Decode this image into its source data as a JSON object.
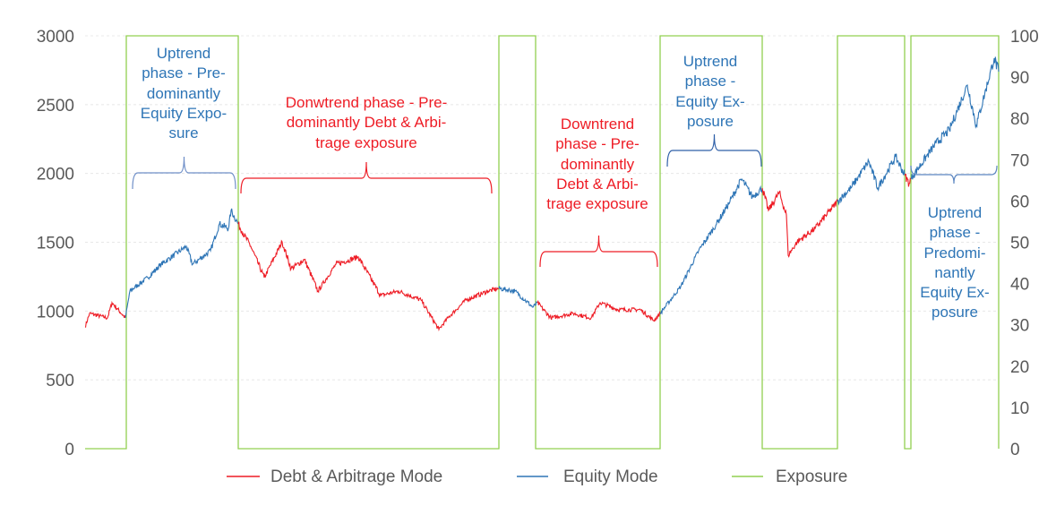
{
  "chart_data": {
    "type": "line",
    "title": "",
    "xlabel": "",
    "ylabel": "",
    "y_left_lim": [
      0,
      3000
    ],
    "y_left_ticks": [
      "0",
      "500",
      "1000",
      "1500",
      "2000",
      "2500",
      "3000"
    ],
    "y_right_lim": [
      0,
      100
    ],
    "y_right_ticks": [
      "0",
      "10",
      "20",
      "30",
      "40",
      "50",
      "60",
      "70",
      "80",
      "90",
      "100"
    ],
    "x_lim": [
      0,
      1020
    ],
    "grid": true,
    "legend_position": "bottom",
    "colors": {
      "debt": "#ee1c25",
      "equity": "#2e75b6",
      "exposure": "#92d050",
      "grid": "#e8e8e8"
    },
    "legend": [
      {
        "key": "debt",
        "label": "Debt & Arbitrage Mode"
      },
      {
        "key": "equity",
        "label": "Equity Mode"
      },
      {
        "key": "exposure",
        "label": "Exposure"
      }
    ],
    "price_segments": [
      {
        "mode": "debt",
        "points": [
          [
            0,
            885
          ],
          [
            5,
            983
          ],
          [
            25,
            950
          ],
          [
            30,
            1061
          ],
          [
            45,
            950
          ]
        ]
      },
      {
        "mode": "equity",
        "points": [
          [
            45,
            950
          ],
          [
            50,
            1145
          ],
          [
            70,
            1243
          ],
          [
            85,
            1340
          ],
          [
            113,
            1470
          ],
          [
            120,
            1340
          ],
          [
            140,
            1438
          ],
          [
            150,
            1633
          ],
          [
            160,
            1600
          ],
          [
            163,
            1731
          ],
          [
            171,
            1633
          ]
        ]
      },
      {
        "mode": "debt",
        "points": [
          [
            171,
            1633
          ],
          [
            175,
            1581
          ],
          [
            185,
            1470
          ],
          [
            200,
            1243
          ],
          [
            220,
            1503
          ],
          [
            230,
            1308
          ],
          [
            245,
            1373
          ],
          [
            260,
            1145
          ],
          [
            280,
            1340
          ],
          [
            305,
            1393
          ],
          [
            330,
            1113
          ],
          [
            350,
            1145
          ],
          [
            375,
            1080
          ],
          [
            395,
            866
          ],
          [
            405,
            950
          ],
          [
            425,
            1080
          ],
          [
            450,
            1145
          ],
          [
            462,
            1165
          ]
        ]
      },
      {
        "mode": "equity",
        "points": [
          [
            462,
            1165
          ],
          [
            480,
            1145
          ],
          [
            500,
            1028
          ],
          [
            505,
            1061
          ]
        ]
      },
      {
        "mode": "debt",
        "points": [
          [
            505,
            1061
          ],
          [
            520,
            950
          ],
          [
            545,
            983
          ],
          [
            565,
            950
          ],
          [
            575,
            1061
          ],
          [
            595,
            1010
          ],
          [
            620,
            1010
          ],
          [
            635,
            931
          ],
          [
            642,
            983
          ]
        ]
      },
      {
        "mode": "equity",
        "points": [
          [
            642,
            983
          ],
          [
            665,
            1178
          ],
          [
            685,
            1438
          ],
          [
            705,
            1633
          ],
          [
            720,
            1796
          ],
          [
            733,
            1959
          ],
          [
            745,
            1829
          ],
          [
            756,
            1894
          ]
        ]
      },
      {
        "mode": "debt",
        "points": [
          [
            756,
            1894
          ],
          [
            763,
            1731
          ],
          [
            775,
            1861
          ],
          [
            783,
            1698
          ],
          [
            785,
            1405
          ],
          [
            795,
            1503
          ],
          [
            815,
            1600
          ],
          [
            840,
            1796
          ]
        ]
      },
      {
        "mode": "equity",
        "points": [
          [
            840,
            1796
          ],
          [
            855,
            1894
          ],
          [
            875,
            2089
          ],
          [
            885,
            1894
          ],
          [
            905,
            2121
          ],
          [
            915,
            1991
          ]
        ]
      },
      {
        "mode": "debt",
        "points": [
          [
            915,
            1991
          ],
          [
            920,
            1926
          ],
          [
            922,
            1960
          ]
        ]
      },
      {
        "mode": "equity",
        "points": [
          [
            922,
            1960
          ],
          [
            925,
            1991
          ],
          [
            950,
            2219
          ],
          [
            965,
            2316
          ],
          [
            985,
            2642
          ],
          [
            995,
            2349
          ],
          [
            1015,
            2837
          ],
          [
            1020,
            2739
          ]
        ]
      }
    ],
    "exposure": [
      [
        0,
        0
      ],
      [
        46,
        0
      ],
      [
        46,
        100
      ],
      [
        171,
        100
      ],
      [
        171,
        0
      ],
      [
        462,
        0
      ],
      [
        462,
        100
      ],
      [
        503,
        100
      ],
      [
        503,
        0
      ],
      [
        642,
        0
      ],
      [
        642,
        100
      ],
      [
        756,
        100
      ],
      [
        756,
        0
      ],
      [
        840,
        0
      ],
      [
        840,
        100
      ],
      [
        915,
        100
      ],
      [
        915,
        0
      ],
      [
        922,
        0
      ],
      [
        922,
        100
      ],
      [
        1020,
        100
      ],
      [
        1020,
        0
      ]
    ]
  },
  "annotations": [
    {
      "mode": "equity",
      "text": "Uptrend\nphase - Pre-\ndominantly\nEquity Expo-\nsure"
    },
    {
      "mode": "debt",
      "text": "Donwtrend phase - Pre-\ndominantly Debt & Arbi-\ntrage exposure"
    },
    {
      "mode": "debt",
      "text": "Downtrend\nphase - Pre-\ndominantly\nDebt & Arbi-\ntrage exposure"
    },
    {
      "mode": "equity",
      "text": "Uptrend\nphase -\nEquity Ex-\nposure"
    },
    {
      "mode": "equity",
      "text": "Uptrend\nphase -\nPredomi-\nnantly\nEquity Ex-\nposure"
    }
  ]
}
